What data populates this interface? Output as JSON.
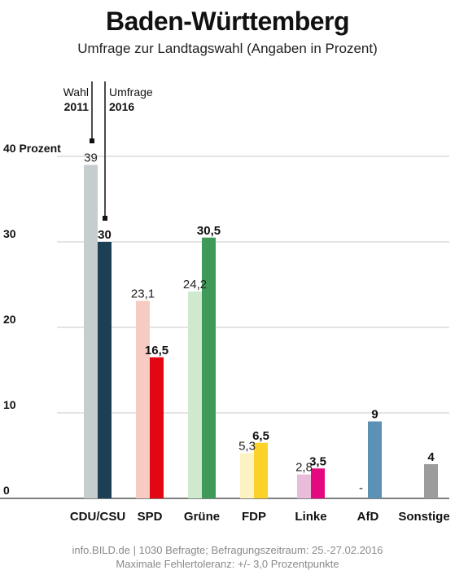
{
  "header": {
    "title": "Baden-Württemberg",
    "subtitle": "Umfrage zur Landtagswahl (Angaben in Prozent)"
  },
  "legend": {
    "wahl_label": "Wahl",
    "wahl_year": "2011",
    "umfrage_label": "Umfrage",
    "umfrage_year": "2016"
  },
  "footer": {
    "line1": "info.BILD.de | 1030 Befragte; Befragungszeitraum: 25.-27.02.2016",
    "line2": "Maximale Fehlertoleranz: +/- 3,0 Prozentpunkte"
  },
  "chart_data": {
    "type": "bar",
    "title": "Baden-Württemberg",
    "subtitle": "Umfrage zur Landtagswahl (Angaben in Prozent)",
    "ylim": [
      0,
      40
    ],
    "yticks": [
      {
        "value": 0,
        "label": "0"
      },
      {
        "value": 10,
        "label": "10"
      },
      {
        "value": 20,
        "label": "20"
      },
      {
        "value": 30,
        "label": "30"
      },
      {
        "value": 40,
        "label": "40 Prozent"
      }
    ],
    "grid": true,
    "categories": [
      "CDU/CSU",
      "SPD",
      "Grüne",
      "FDP",
      "Linke",
      "AfD",
      "Sonstige"
    ],
    "series": [
      {
        "name": "Wahl 2011",
        "values": [
          39,
          23.1,
          24.2,
          5.3,
          2.8,
          null,
          null
        ],
        "labels": [
          "39",
          "23,1",
          "24,2",
          "5,3",
          "2,8",
          "-",
          ""
        ],
        "colors": [
          "#c5cdcf",
          "#f6cbc1",
          "#cfe9cf",
          "#fdf3c2",
          "#e9bcd9",
          "#ffffff",
          "#ffffff"
        ]
      },
      {
        "name": "Umfrage 2016",
        "values": [
          30,
          16.5,
          30.5,
          6.5,
          3.5,
          9,
          4
        ],
        "labels": [
          "30",
          "16,5",
          "30,5",
          "6,5",
          "3,5",
          "9",
          "4"
        ],
        "colors": [
          "#1d3f55",
          "#e30613",
          "#3f9a5a",
          "#fcd22a",
          "#e5097f",
          "#5b91b5",
          "#9c9c9c"
        ]
      }
    ]
  }
}
